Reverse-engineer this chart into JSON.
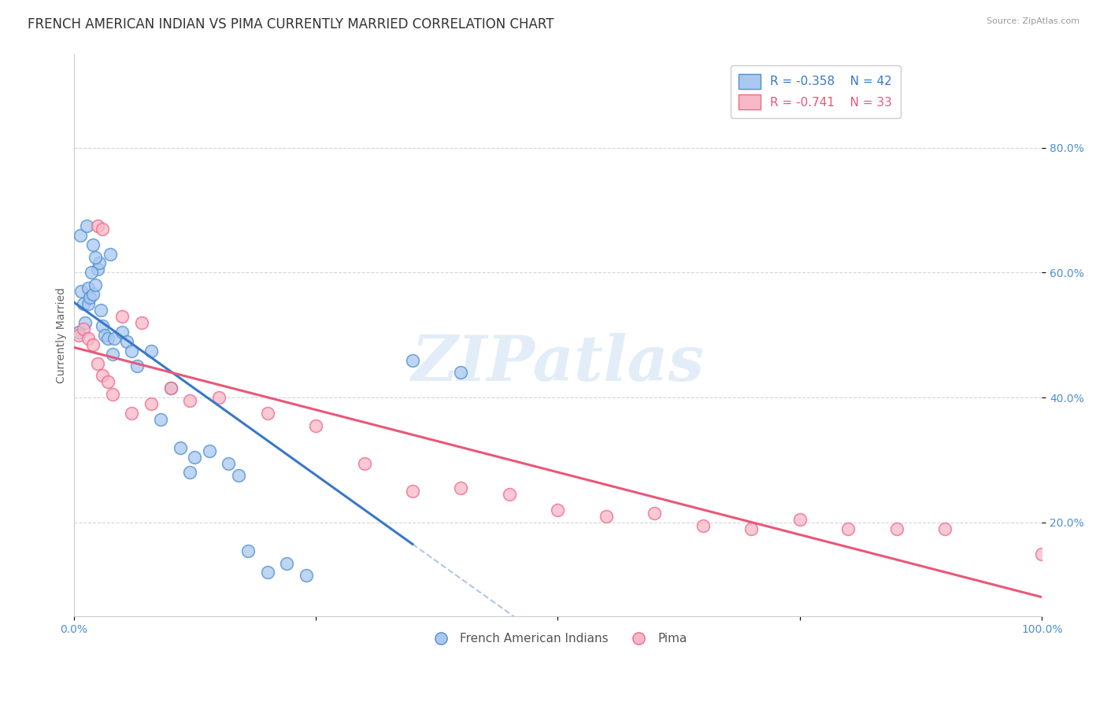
{
  "title": "FRENCH AMERICAN INDIAN VS PIMA CURRENTLY MARRIED CORRELATION CHART",
  "source": "Source: ZipAtlas.com",
  "ylabel": "Currently Married",
  "watermark": "ZIPatlas",
  "legend_blue_r": "-0.358",
  "legend_blue_n": "42",
  "legend_pink_r": "-0.741",
  "legend_pink_n": "33",
  "legend_label_blue": "French American Indians",
  "legend_label_pink": "Pima",
  "blue_fill": "#A8C8F0",
  "pink_fill": "#F8B8C8",
  "blue_edge": "#5090D0",
  "pink_edge": "#F06888",
  "blue_line_color": "#3878C8",
  "pink_line_color": "#E85878",
  "dashed_line_color": "#B0C8E8",
  "blue_points": [
    [
      0.5,
      50.5
    ],
    [
      0.8,
      57.0
    ],
    [
      1.0,
      55.0
    ],
    [
      1.2,
      52.0
    ],
    [
      1.5,
      55.0
    ],
    [
      1.5,
      57.5
    ],
    [
      1.7,
      56.0
    ],
    [
      2.0,
      56.5
    ],
    [
      2.2,
      58.0
    ],
    [
      2.5,
      60.5
    ],
    [
      2.8,
      54.0
    ],
    [
      3.0,
      51.5
    ],
    [
      3.2,
      50.0
    ],
    [
      3.5,
      49.5
    ],
    [
      4.0,
      47.0
    ],
    [
      4.2,
      49.5
    ],
    [
      5.0,
      50.5
    ],
    [
      5.5,
      49.0
    ],
    [
      6.0,
      47.5
    ],
    [
      6.5,
      45.0
    ],
    [
      8.0,
      47.5
    ],
    [
      9.0,
      36.5
    ],
    [
      10.0,
      41.5
    ],
    [
      11.0,
      32.0
    ],
    [
      12.0,
      28.0
    ],
    [
      12.5,
      30.5
    ],
    [
      14.0,
      31.5
    ],
    [
      16.0,
      29.5
    ],
    [
      17.0,
      27.5
    ],
    [
      18.0,
      15.5
    ],
    [
      20.0,
      12.0
    ],
    [
      22.0,
      13.5
    ],
    [
      24.0,
      11.5
    ],
    [
      3.8,
      63.0
    ],
    [
      2.0,
      64.5
    ],
    [
      0.7,
      66.0
    ],
    [
      1.3,
      67.5
    ],
    [
      2.6,
      61.5
    ],
    [
      1.8,
      60.0
    ],
    [
      2.2,
      62.5
    ],
    [
      35.0,
      46.0
    ],
    [
      40.0,
      44.0
    ]
  ],
  "pink_points": [
    [
      0.5,
      50.0
    ],
    [
      1.0,
      51.0
    ],
    [
      1.5,
      49.5
    ],
    [
      2.5,
      67.5
    ],
    [
      3.0,
      67.0
    ],
    [
      2.0,
      48.5
    ],
    [
      2.5,
      45.5
    ],
    [
      3.0,
      43.5
    ],
    [
      3.5,
      42.5
    ],
    [
      4.0,
      40.5
    ],
    [
      5.0,
      53.0
    ],
    [
      6.0,
      37.5
    ],
    [
      7.0,
      52.0
    ],
    [
      8.0,
      39.0
    ],
    [
      10.0,
      41.5
    ],
    [
      12.0,
      39.5
    ],
    [
      15.0,
      40.0
    ],
    [
      20.0,
      37.5
    ],
    [
      25.0,
      35.5
    ],
    [
      30.0,
      29.5
    ],
    [
      35.0,
      25.0
    ],
    [
      40.0,
      25.5
    ],
    [
      45.0,
      24.5
    ],
    [
      50.0,
      22.0
    ],
    [
      55.0,
      21.0
    ],
    [
      60.0,
      21.5
    ],
    [
      65.0,
      19.5
    ],
    [
      70.0,
      19.0
    ],
    [
      75.0,
      20.5
    ],
    [
      80.0,
      19.0
    ],
    [
      85.0,
      19.0
    ],
    [
      90.0,
      19.0
    ],
    [
      100.0,
      15.0
    ]
  ],
  "xlim": [
    0,
    100
  ],
  "ylim": [
    5,
    95
  ],
  "ytick_positions": [
    20,
    40,
    60,
    80
  ],
  "ytick_labels": [
    "20.0%",
    "40.0%",
    "60.0%",
    "80.0%"
  ],
  "xtick_positions": [
    0,
    25,
    50,
    75,
    100
  ],
  "xtick_labels": [
    "0.0%",
    "",
    "",
    "",
    "100.0%"
  ],
  "grid_color": "#CCCCCC",
  "bg_color": "#FFFFFF",
  "title_fontsize": 12,
  "axis_label_fontsize": 10,
  "tick_fontsize": 10,
  "blue_line_x_end": 35,
  "pink_line_x_start": 0,
  "pink_line_x_end": 100
}
